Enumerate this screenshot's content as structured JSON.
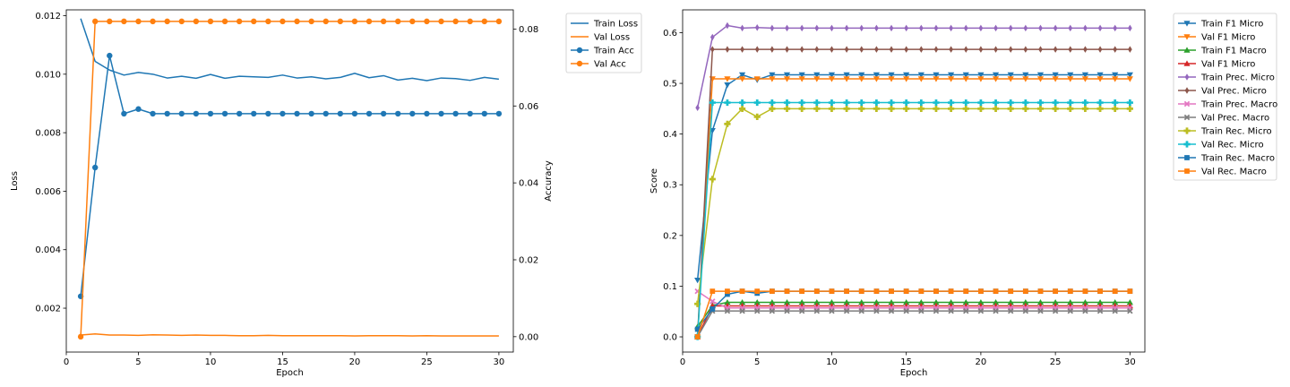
{
  "chart_data": [
    {
      "type": "line",
      "x": [
        1,
        2,
        3,
        4,
        5,
        6,
        7,
        8,
        9,
        10,
        11,
        12,
        13,
        14,
        15,
        16,
        17,
        18,
        19,
        20,
        21,
        22,
        23,
        24,
        25,
        26,
        27,
        28,
        29,
        30
      ],
      "xlabel": "Epoch",
      "ylabel": "Loss",
      "ylabel_right": "Accuracy",
      "xlim": [
        0,
        31
      ],
      "ylim": [
        0.0005,
        0.0122
      ],
      "ylim_right": [
        -0.004,
        0.085
      ],
      "xticks": [
        0,
        5,
        10,
        15,
        20,
        25,
        30
      ],
      "yticks": [
        0.002,
        0.004,
        0.006,
        0.008,
        0.01,
        0.012
      ],
      "ytick_labels": [
        "0.002",
        "0.004",
        "0.006",
        "0.008",
        "0.010",
        "0.012"
      ],
      "yticks_right": [
        0.0,
        0.02,
        0.04,
        0.06,
        0.08
      ],
      "ytick_labels_right": [
        "0.00",
        "0.02",
        "0.04",
        "0.06",
        "0.08"
      ],
      "legend_position": "outside-top-right",
      "series": [
        {
          "name": "Train Loss",
          "axis": "left",
          "color": "#1f77b4",
          "marker": "none",
          "values": [
            0.0119,
            0.01044,
            0.01014,
            0.00997,
            0.01006,
            0.01,
            0.00987,
            0.00993,
            0.00986,
            0.00999,
            0.00986,
            0.00993,
            0.00991,
            0.00989,
            0.00997,
            0.00987,
            0.00991,
            0.00984,
            0.00989,
            0.01003,
            0.00988,
            0.00995,
            0.0098,
            0.00986,
            0.00978,
            0.00987,
            0.00985,
            0.00979,
            0.00989,
            0.00983
          ]
        },
        {
          "name": "Val Loss",
          "axis": "left",
          "color": "#ff7f0e",
          "marker": "none",
          "values": [
            0.00108,
            0.00112,
            0.00108,
            0.00108,
            0.00107,
            0.00109,
            0.00108,
            0.00107,
            0.00108,
            0.00107,
            0.00107,
            0.00106,
            0.00106,
            0.00107,
            0.00106,
            0.00106,
            0.00106,
            0.00106,
            0.00106,
            0.00105,
            0.00106,
            0.00106,
            0.00106,
            0.00105,
            0.00106,
            0.00105,
            0.00105,
            0.00105,
            0.00105,
            0.00105
          ]
        },
        {
          "name": "Train Acc",
          "axis": "right",
          "color": "#1f77b4",
          "marker": "circle",
          "values": [
            0.0105,
            0.044,
            0.0731,
            0.058,
            0.0592,
            0.058,
            0.058,
            0.058,
            0.058,
            0.058,
            0.058,
            0.058,
            0.058,
            0.058,
            0.058,
            0.058,
            0.058,
            0.058,
            0.058,
            0.058,
            0.058,
            0.058,
            0.058,
            0.058,
            0.058,
            0.058,
            0.058,
            0.058,
            0.058,
            0.058
          ]
        },
        {
          "name": "Val Acc",
          "axis": "right",
          "color": "#ff7f0e",
          "marker": "circle",
          "values": [
            0.0,
            0.082,
            0.082,
            0.082,
            0.082,
            0.082,
            0.082,
            0.082,
            0.082,
            0.082,
            0.082,
            0.082,
            0.082,
            0.082,
            0.082,
            0.082,
            0.082,
            0.082,
            0.082,
            0.082,
            0.082,
            0.082,
            0.082,
            0.082,
            0.082,
            0.082,
            0.082,
            0.082,
            0.082,
            0.082
          ]
        }
      ]
    },
    {
      "type": "line",
      "x": [
        1,
        2,
        3,
        4,
        5,
        6,
        7,
        8,
        9,
        10,
        11,
        12,
        13,
        14,
        15,
        16,
        17,
        18,
        19,
        20,
        21,
        22,
        23,
        24,
        25,
        26,
        27,
        28,
        29,
        30
      ],
      "xlabel": "Epoch",
      "ylabel": "Score",
      "xlim": [
        0,
        31
      ],
      "ylim": [
        -0.03,
        0.645
      ],
      "xticks": [
        0,
        5,
        10,
        15,
        20,
        25,
        30
      ],
      "yticks": [
        0.0,
        0.1,
        0.2,
        0.3,
        0.4,
        0.5,
        0.6
      ],
      "ytick_labels": [
        "0.0",
        "0.1",
        "0.2",
        "0.3",
        "0.4",
        "0.5",
        "0.6"
      ],
      "legend_position": "outside-top-right",
      "series": [
        {
          "name": "Train F1 Micro",
          "color": "#1f77b4",
          "marker": "tri-down",
          "values": [
            0.112,
            0.407,
            0.497,
            0.517,
            0.507,
            0.517,
            0.517,
            0.517,
            0.517,
            0.517,
            0.517,
            0.517,
            0.517,
            0.517,
            0.517,
            0.517,
            0.517,
            0.517,
            0.517,
            0.517,
            0.517,
            0.517,
            0.517,
            0.517,
            0.517,
            0.517,
            0.517,
            0.517,
            0.517,
            0.517
          ]
        },
        {
          "name": "Val F1 Micro",
          "color": "#ff7f0e",
          "marker": "tri-down",
          "values": [
            0.0,
            0.509,
            0.509,
            0.509,
            0.509,
            0.509,
            0.509,
            0.509,
            0.509,
            0.509,
            0.509,
            0.509,
            0.509,
            0.509,
            0.509,
            0.509,
            0.509,
            0.509,
            0.509,
            0.509,
            0.509,
            0.509,
            0.509,
            0.509,
            0.509,
            0.509,
            0.509,
            0.509,
            0.509,
            0.509
          ]
        },
        {
          "name": "Train F1 Macro",
          "color": "#2ca02c",
          "marker": "tri-up",
          "values": [
            0.02,
            0.062,
            0.068,
            0.068,
            0.068,
            0.068,
            0.068,
            0.068,
            0.068,
            0.068,
            0.068,
            0.068,
            0.068,
            0.068,
            0.068,
            0.068,
            0.068,
            0.068,
            0.068,
            0.068,
            0.068,
            0.068,
            0.068,
            0.068,
            0.068,
            0.068,
            0.068,
            0.068,
            0.068,
            0.068
          ]
        },
        {
          "name": "Val F1 Micro",
          "color": "#d62728",
          "marker": "tri-up",
          "values": [
            0.0,
            0.061,
            0.061,
            0.061,
            0.061,
            0.061,
            0.061,
            0.061,
            0.061,
            0.061,
            0.061,
            0.061,
            0.061,
            0.061,
            0.061,
            0.061,
            0.061,
            0.061,
            0.061,
            0.061,
            0.061,
            0.061,
            0.061,
            0.061,
            0.061,
            0.061,
            0.061,
            0.061,
            0.061,
            0.061
          ]
        },
        {
          "name": "Train Prec. Micro",
          "color": "#9467bd",
          "marker": "thin-diamond",
          "values": [
            0.452,
            0.591,
            0.614,
            0.609,
            0.61,
            0.609,
            0.609,
            0.609,
            0.609,
            0.609,
            0.609,
            0.609,
            0.609,
            0.609,
            0.609,
            0.609,
            0.609,
            0.609,
            0.609,
            0.609,
            0.609,
            0.609,
            0.609,
            0.609,
            0.609,
            0.609,
            0.609,
            0.609,
            0.609,
            0.609
          ]
        },
        {
          "name": "Val Prec. Micro",
          "color": "#8c564b",
          "marker": "thin-diamond",
          "values": [
            0.0,
            0.567,
            0.567,
            0.567,
            0.567,
            0.567,
            0.567,
            0.567,
            0.567,
            0.567,
            0.567,
            0.567,
            0.567,
            0.567,
            0.567,
            0.567,
            0.567,
            0.567,
            0.567,
            0.567,
            0.567,
            0.567,
            0.567,
            0.567,
            0.567,
            0.567,
            0.567,
            0.567,
            0.567,
            0.567
          ]
        },
        {
          "name": "Train Prec. Macro",
          "color": "#e377c2",
          "marker": "x",
          "values": [
            0.09,
            0.07,
            0.057,
            0.057,
            0.057,
            0.057,
            0.057,
            0.057,
            0.057,
            0.057,
            0.057,
            0.057,
            0.057,
            0.057,
            0.057,
            0.057,
            0.057,
            0.057,
            0.057,
            0.057,
            0.057,
            0.057,
            0.057,
            0.057,
            0.057,
            0.057,
            0.057,
            0.057,
            0.057,
            0.057
          ]
        },
        {
          "name": "Val Prec. Macro",
          "color": "#7f7f7f",
          "marker": "x",
          "values": [
            0.0,
            0.051,
            0.051,
            0.051,
            0.051,
            0.051,
            0.051,
            0.051,
            0.051,
            0.051,
            0.051,
            0.051,
            0.051,
            0.051,
            0.051,
            0.051,
            0.051,
            0.051,
            0.051,
            0.051,
            0.051,
            0.051,
            0.051,
            0.051,
            0.051,
            0.051,
            0.051,
            0.051,
            0.051,
            0.051
          ]
        },
        {
          "name": "Train Rec. Micro",
          "color": "#bcbd22",
          "marker": "plus-filled",
          "values": [
            0.065,
            0.311,
            0.42,
            0.45,
            0.434,
            0.45,
            0.45,
            0.45,
            0.45,
            0.45,
            0.45,
            0.45,
            0.45,
            0.45,
            0.45,
            0.45,
            0.45,
            0.45,
            0.45,
            0.45,
            0.45,
            0.45,
            0.45,
            0.45,
            0.45,
            0.45,
            0.45,
            0.45,
            0.45,
            0.45
          ]
        },
        {
          "name": "Val Rec. Micro",
          "color": "#17becf",
          "marker": "plus-filled",
          "values": [
            0.0,
            0.462,
            0.462,
            0.462,
            0.462,
            0.462,
            0.462,
            0.462,
            0.462,
            0.462,
            0.462,
            0.462,
            0.462,
            0.462,
            0.462,
            0.462,
            0.462,
            0.462,
            0.462,
            0.462,
            0.462,
            0.462,
            0.462,
            0.462,
            0.462,
            0.462,
            0.462,
            0.462,
            0.462,
            0.462
          ]
        },
        {
          "name": "Train Rec. Macro",
          "color": "#1f77b4",
          "marker": "square",
          "values": [
            0.015,
            0.055,
            0.084,
            0.09,
            0.086,
            0.09,
            0.09,
            0.09,
            0.09,
            0.09,
            0.09,
            0.09,
            0.09,
            0.09,
            0.09,
            0.09,
            0.09,
            0.09,
            0.09,
            0.09,
            0.09,
            0.09,
            0.09,
            0.09,
            0.09,
            0.09,
            0.09,
            0.09,
            0.09,
            0.09
          ]
        },
        {
          "name": "Val Rec. Macro",
          "color": "#ff7f0e",
          "marker": "square",
          "values": [
            0.0,
            0.09,
            0.09,
            0.09,
            0.09,
            0.09,
            0.09,
            0.09,
            0.09,
            0.09,
            0.09,
            0.09,
            0.09,
            0.09,
            0.09,
            0.09,
            0.09,
            0.09,
            0.09,
            0.09,
            0.09,
            0.09,
            0.09,
            0.09,
            0.09,
            0.09,
            0.09,
            0.09,
            0.09,
            0.09
          ]
        }
      ]
    }
  ]
}
